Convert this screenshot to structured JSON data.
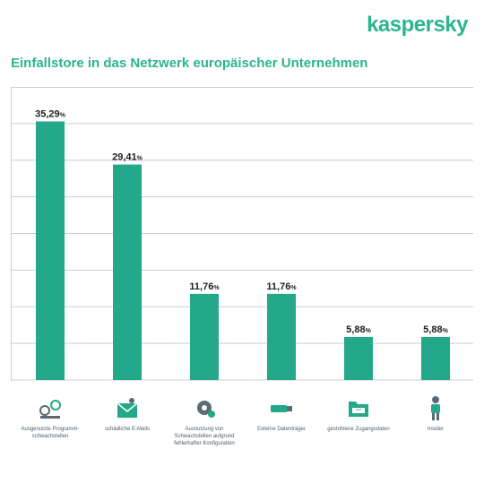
{
  "brand": {
    "logo_text": "kaspersky"
  },
  "colors": {
    "accent": "#23a889",
    "title": "#2bb58f",
    "grid": "#c8cdd0",
    "text": "#1d1d1b"
  },
  "chart_data": {
    "type": "bar",
    "title": "Einfallstore in das Netzwerk europäischer Unternehmen",
    "xlabel": "",
    "ylabel": "",
    "ylim": [
      0,
      40
    ],
    "grid": true,
    "categories": [
      "Ausgenutzte Programm-schwachstellen",
      "schädliche E-Mails",
      "Ausnutzung von Schwachstellen aufgrund fehlerhafter Konfiguration",
      "Externe Datenträger",
      "gestohlene Zugangsdaten",
      "Insider"
    ],
    "values": [
      35.29,
      29.41,
      11.76,
      11.76,
      5.88,
      5.88
    ],
    "value_labels": [
      "35,29",
      "29,41",
      "11,76",
      "11,76",
      "5,88",
      "5,88"
    ],
    "value_unit": "%",
    "icons": [
      "exploit-icon",
      "email-icon",
      "gear-icon",
      "usb-drive-icon",
      "folder-password-icon",
      "insider-person-icon"
    ]
  }
}
